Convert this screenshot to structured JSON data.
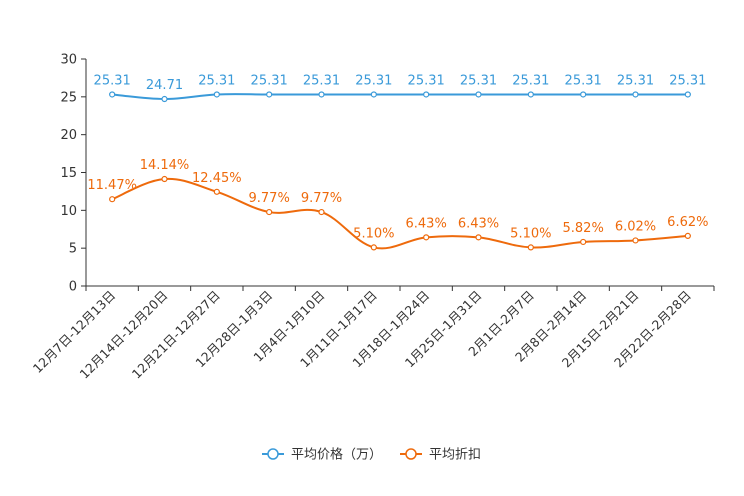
{
  "chart_data": {
    "type": "line",
    "title": "",
    "xlabel": "",
    "ylabel": "",
    "ylim": [
      0,
      30
    ],
    "yticks": [
      0,
      5,
      10,
      15,
      20,
      25,
      30
    ],
    "categories": [
      "12月7日-12月13日",
      "12月14日-12月20日",
      "12月21日-12月27日",
      "12月28日-1月3日",
      "1月4日-1月10日",
      "1月11日-1月17日",
      "1月18日-1月24日",
      "1月25日-1月31日",
      "2月1日-2月7日",
      "2月8日-2月14日",
      "2月15日-2月21日",
      "2月22日-2月28日"
    ],
    "series": [
      {
        "name": "平均价格（万）",
        "color": "#3a9ad9",
        "values": [
          25.31,
          24.71,
          25.31,
          25.31,
          25.31,
          25.31,
          25.31,
          25.31,
          25.31,
          25.31,
          25.31,
          25.31
        ],
        "labels": [
          "25.31",
          "24.71",
          "25.31",
          "25.31",
          "25.31",
          "25.31",
          "25.31",
          "25.31",
          "25.31",
          "25.31",
          "25.31",
          "25.31"
        ]
      },
      {
        "name": "平均折扣",
        "color": "#ee6a0c",
        "values": [
          11.47,
          14.14,
          12.45,
          9.77,
          9.77,
          5.1,
          6.43,
          6.43,
          5.1,
          5.82,
          6.02,
          6.62
        ],
        "labels": [
          "11.47%",
          "14.14%",
          "12.45%",
          "9.77%",
          "9.77%",
          "5.10%",
          "6.43%",
          "6.43%",
          "5.10%",
          "5.82%",
          "6.02%",
          "6.62%"
        ]
      }
    ],
    "legend_position": "bottom-center"
  }
}
